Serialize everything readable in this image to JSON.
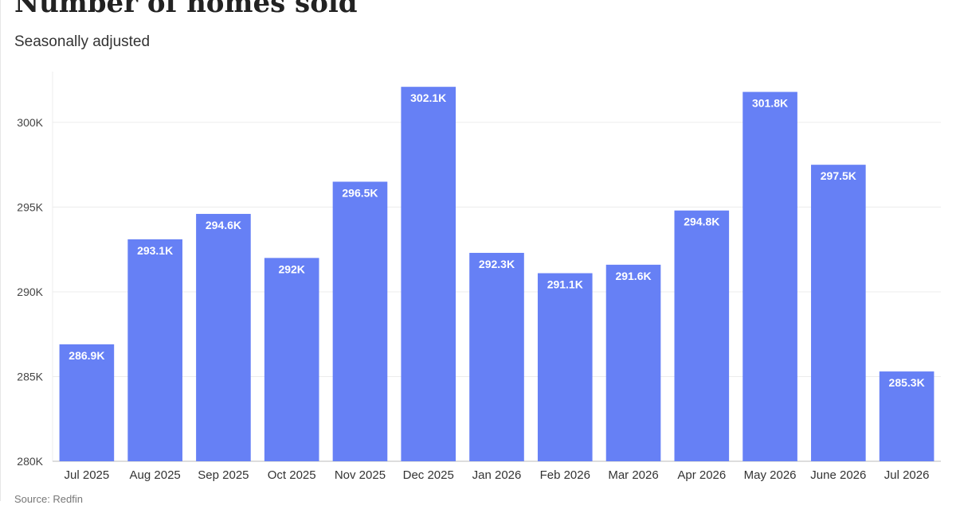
{
  "header": {
    "title": "Number of homes sold",
    "subtitle": "Seasonally adjusted"
  },
  "footer": {
    "source": "Source: Redfin"
  },
  "colors": {
    "bar": "#6680f5",
    "grid": "#ececec",
    "axis_line": "#bbbbbb"
  },
  "chart_data": {
    "type": "bar",
    "title": "Number of homes sold",
    "subtitle": "Seasonally adjusted",
    "xlabel": "",
    "ylabel": "",
    "ylim": [
      280000,
      303000
    ],
    "grid": true,
    "y_ticks": [
      280000,
      285000,
      290000,
      295000,
      300000
    ],
    "y_tick_labels": [
      "280K",
      "285K",
      "290K",
      "295K",
      "300K"
    ],
    "categories": [
      "Jul 2025",
      "Aug 2025",
      "Sep 2025",
      "Oct 2025",
      "Nov 2025",
      "Dec 2025",
      "Jan 2026",
      "Feb 2026",
      "Mar 2026",
      "Apr 2026",
      "May 2026",
      "June 2026",
      "Jul 2026"
    ],
    "values": [
      286900,
      293100,
      294600,
      292000,
      296500,
      302100,
      292300,
      291100,
      291600,
      294800,
      301800,
      297500,
      285300
    ],
    "data_labels": [
      "286.9K",
      "293.1K",
      "294.6K",
      "292K",
      "296.5K",
      "302.1K",
      "292.3K",
      "291.1K",
      "291.6K",
      "294.8K",
      "301.8K",
      "297.5K",
      "285.3K"
    ]
  }
}
